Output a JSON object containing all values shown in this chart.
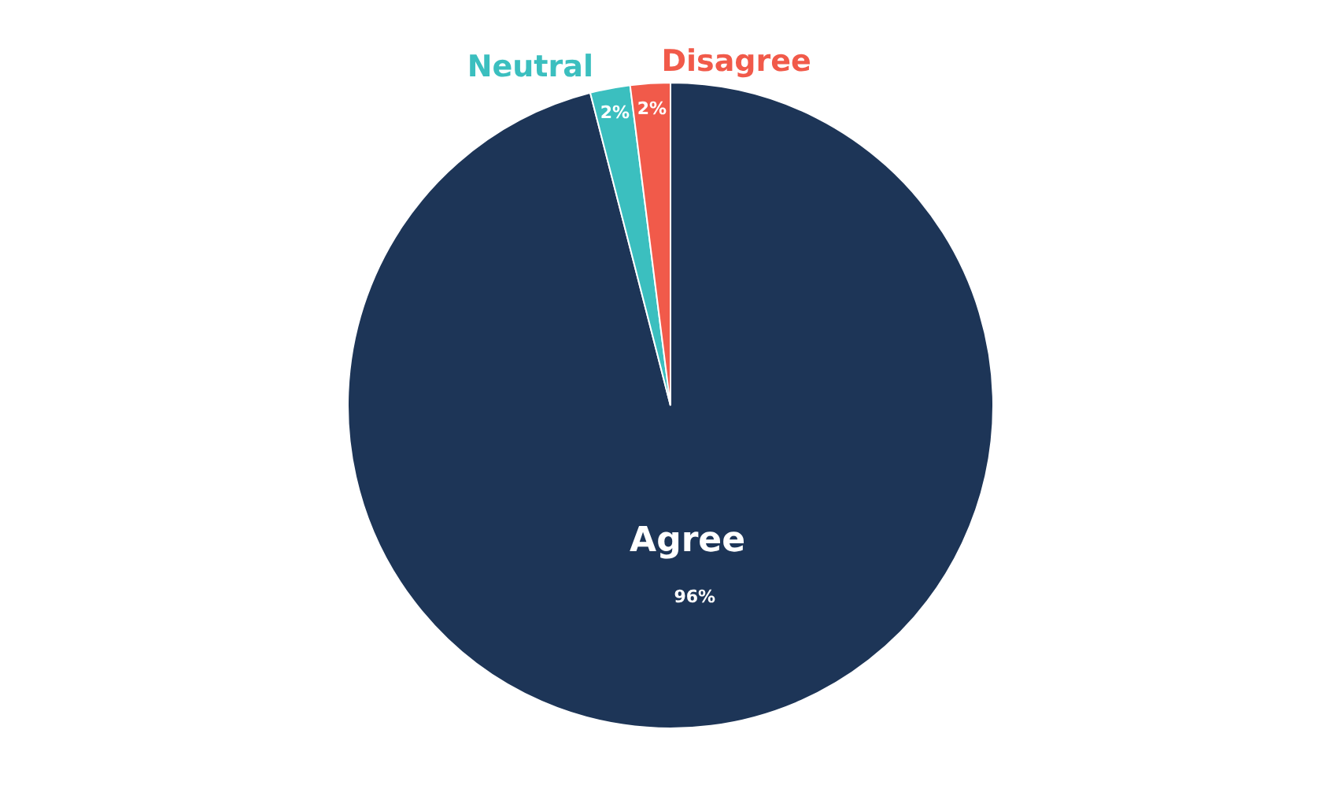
{
  "chart_data": {
    "type": "pie",
    "categories": [
      "Agree",
      "Neutral",
      "Disagree"
    ],
    "values": [
      96,
      2,
      2
    ],
    "value_labels": [
      "96%",
      "2%",
      "2%"
    ],
    "colors": [
      "#1d3557",
      "#3bbfbf",
      "#f15a4a"
    ]
  }
}
